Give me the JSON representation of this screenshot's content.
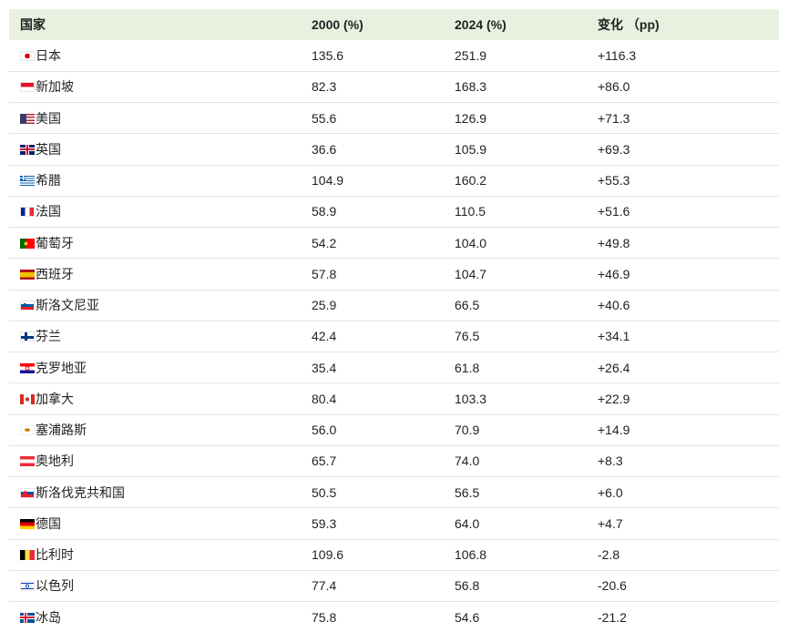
{
  "table": {
    "headers": [
      "国家",
      "2000 (%)",
      "2024 (%)",
      "变化 （pp)"
    ],
    "rows": [
      {
        "country": "日本",
        "flag": "japan-flag-icon",
        "y2000": "135.6",
        "y2024": "251.9",
        "change": "+116.3"
      },
      {
        "country": "新加坡",
        "flag": "singapore-flag-icon",
        "y2000": "82.3",
        "y2024": "168.3",
        "change": "+86.0"
      },
      {
        "country": "美国",
        "flag": "usa-flag-icon",
        "y2000": "55.6",
        "y2024": "126.9",
        "change": "+71.3"
      },
      {
        "country": "英国",
        "flag": "uk-flag-icon",
        "y2000": "36.6",
        "y2024": "105.9",
        "change": "+69.3"
      },
      {
        "country": "希腊",
        "flag": "greece-flag-icon",
        "y2000": "104.9",
        "y2024": "160.2",
        "change": "+55.3"
      },
      {
        "country": "法国",
        "flag": "france-flag-icon",
        "y2000": "58.9",
        "y2024": "110.5",
        "change": "+51.6"
      },
      {
        "country": "葡萄牙",
        "flag": "portugal-flag-icon",
        "y2000": "54.2",
        "y2024": "104.0",
        "change": "+49.8"
      },
      {
        "country": "西班牙",
        "flag": "spain-flag-icon",
        "y2000": "57.8",
        "y2024": "104.7",
        "change": "+46.9"
      },
      {
        "country": "斯洛文尼亚",
        "flag": "slovenia-flag-icon",
        "y2000": "25.9",
        "y2024": "66.5",
        "change": "+40.6"
      },
      {
        "country": "芬兰",
        "flag": "finland-flag-icon",
        "y2000": "42.4",
        "y2024": "76.5",
        "change": "+34.1"
      },
      {
        "country": "克罗地亚",
        "flag": "croatia-flag-icon",
        "y2000": "35.4",
        "y2024": "61.8",
        "change": "+26.4"
      },
      {
        "country": "加拿大",
        "flag": "canada-flag-icon",
        "y2000": "80.4",
        "y2024": "103.3",
        "change": "+22.9"
      },
      {
        "country": "塞浦路斯",
        "flag": "cyprus-flag-icon",
        "y2000": "56.0",
        "y2024": "70.9",
        "change": "+14.9"
      },
      {
        "country": "奥地利",
        "flag": "austria-flag-icon",
        "y2000": "65.7",
        "y2024": "74.0",
        "change": "+8.3"
      },
      {
        "country": "斯洛伐克共和国",
        "flag": "slovakia-flag-icon",
        "y2000": "50.5",
        "y2024": "56.5",
        "change": "+6.0"
      },
      {
        "country": "德国",
        "flag": "germany-flag-icon",
        "y2000": "59.3",
        "y2024": "64.0",
        "change": "+4.7"
      },
      {
        "country": "比利时",
        "flag": "belgium-flag-icon",
        "y2000": "109.6",
        "y2024": "106.8",
        "change": "-2.8"
      },
      {
        "country": "以色列",
        "flag": "israel-flag-icon",
        "y2000": "77.4",
        "y2024": "56.8",
        "change": "-20.6"
      },
      {
        "country": "冰岛",
        "flag": "iceland-flag-icon",
        "y2000": "75.8",
        "y2024": "54.6",
        "change": "-21.2"
      }
    ]
  },
  "colors": {
    "header_bg": "#e8f1df",
    "row_divider": "#e3e3e3",
    "text": "#222222"
  }
}
